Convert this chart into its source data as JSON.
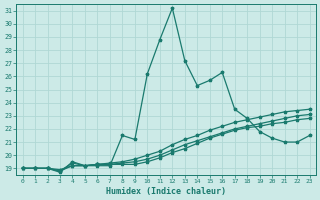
{
  "xlabel": "Humidex (Indice chaleur)",
  "ylabel": "",
  "xlim": [
    -0.5,
    23.5
  ],
  "ylim": [
    18.5,
    31.5
  ],
  "yticks": [
    19,
    20,
    21,
    22,
    23,
    24,
    25,
    26,
    27,
    28,
    29,
    30,
    31
  ],
  "xticks": [
    0,
    1,
    2,
    3,
    4,
    5,
    6,
    7,
    8,
    9,
    10,
    11,
    12,
    13,
    14,
    15,
    16,
    17,
    18,
    19,
    20,
    21,
    22,
    23
  ],
  "bg_color": "#cceae7",
  "line_color": "#1a7a6e",
  "grid_color": "#b0d8d4",
  "lines": [
    [
      19.0,
      19.0,
      19.0,
      18.7,
      19.5,
      19.2,
      19.2,
      19.2,
      21.5,
      21.2,
      26.2,
      28.8,
      31.2,
      27.2,
      25.3,
      25.7,
      26.3,
      23.5,
      22.8,
      21.8,
      21.3,
      21.0,
      21.0,
      21.5
    ],
    [
      19.0,
      19.0,
      19.0,
      18.8,
      19.4,
      19.2,
      19.3,
      19.3,
      19.3,
      19.3,
      19.5,
      19.8,
      20.2,
      20.5,
      20.9,
      21.3,
      21.6,
      21.9,
      22.1,
      22.2,
      22.4,
      22.5,
      22.7,
      22.8
    ],
    [
      19.0,
      19.0,
      19.0,
      18.8,
      19.2,
      19.2,
      19.3,
      19.3,
      19.4,
      19.5,
      19.7,
      20.0,
      20.4,
      20.8,
      21.1,
      21.4,
      21.7,
      22.0,
      22.2,
      22.4,
      22.6,
      22.8,
      23.0,
      23.1
    ],
    [
      19.0,
      19.0,
      19.0,
      18.9,
      19.2,
      19.2,
      19.3,
      19.4,
      19.5,
      19.7,
      20.0,
      20.3,
      20.8,
      21.2,
      21.5,
      21.9,
      22.2,
      22.5,
      22.7,
      22.9,
      23.1,
      23.3,
      23.4,
      23.5
    ]
  ]
}
